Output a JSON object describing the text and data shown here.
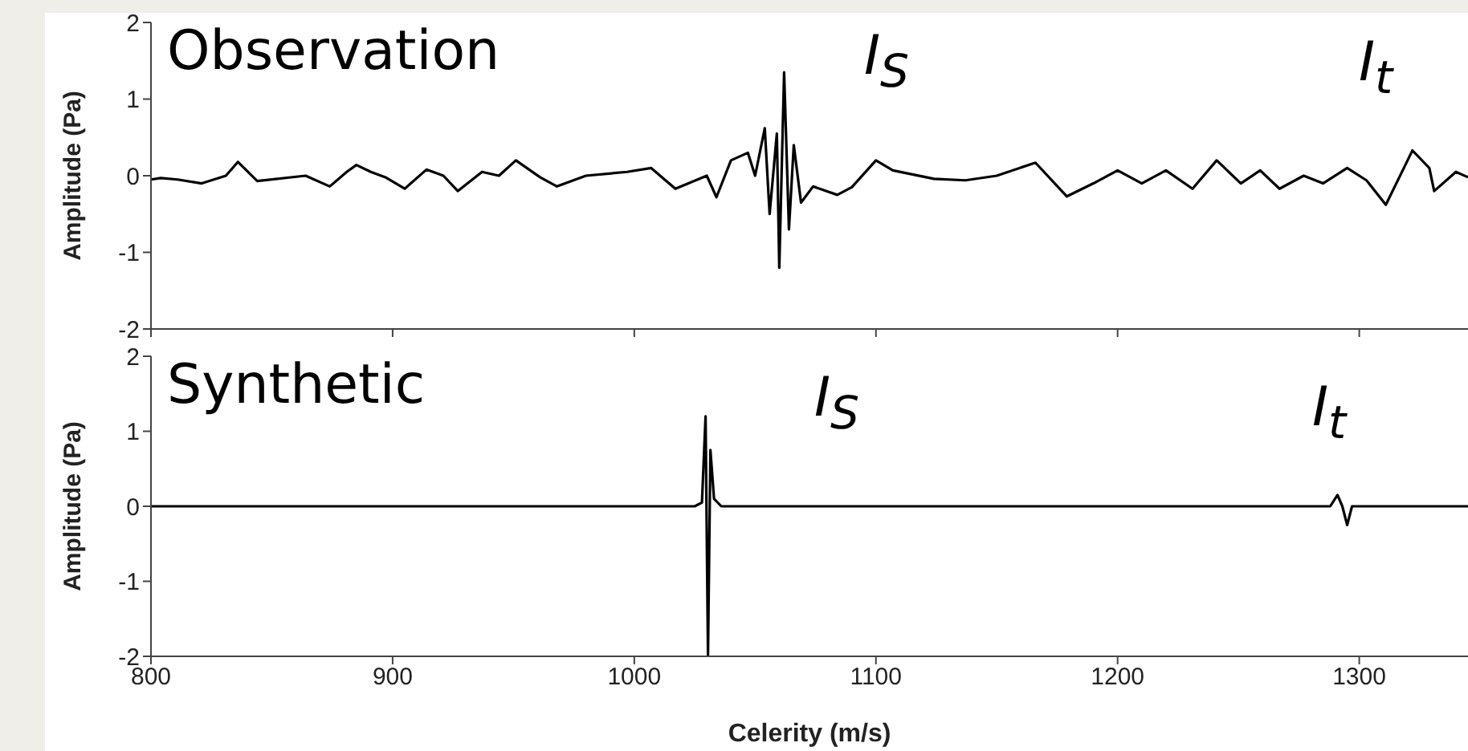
{
  "chart_data": [
    {
      "type": "line",
      "title": "Observation",
      "ylabel": "Amplitude (Pa)",
      "xlim": [
        800,
        1345
      ],
      "xticks": [
        800,
        900,
        1000,
        1100,
        1200,
        1300
      ],
      "ylim": [
        -2,
        2
      ],
      "yticks": [
        -2,
        -1,
        0,
        1,
        2
      ],
      "tick_labels": "y",
      "grid": false,
      "legend": false,
      "marker": "none",
      "line_style": "solid",
      "series": [
        {
          "color": "#000000",
          "x": [
            800,
            804,
            811,
            821,
            831,
            836,
            844,
            864,
            874,
            881,
            885,
            891,
            897,
            905,
            914,
            921,
            927,
            937,
            944,
            951,
            961,
            968,
            980,
            997,
            1007,
            1017,
            1030,
            1034,
            1040,
            1047,
            1050,
            1054,
            1056,
            1059,
            1060,
            1062,
            1064,
            1066,
            1069,
            1074,
            1084,
            1090,
            1100,
            1107,
            1124,
            1137,
            1150,
            1166,
            1179,
            1190,
            1200,
            1210,
            1220,
            1231,
            1241,
            1251,
            1259,
            1267,
            1277,
            1285,
            1295,
            1303,
            1311,
            1320,
            1322,
            1329,
            1331,
            1340,
            1345
          ],
          "values": [
            -0.05,
            -0.03,
            -0.05,
            -0.1,
            0,
            0.18,
            -0.07,
            0,
            -0.14,
            0.05,
            0.14,
            0.05,
            -0.02,
            -0.17,
            0.08,
            0,
            -0.2,
            0.05,
            0,
            0.2,
            -0.02,
            -0.14,
            0,
            0.05,
            0.1,
            -0.17,
            0,
            -0.28,
            0.2,
            0.3,
            0,
            0.62,
            -0.5,
            0.55,
            -1.2,
            1.35,
            -0.7,
            0.4,
            -0.35,
            -0.14,
            -0.25,
            -0.15,
            0.2,
            0.07,
            -0.04,
            -0.06,
            0,
            0.17,
            -0.27,
            -0.1,
            0.07,
            -0.1,
            0.07,
            -0.17,
            0.2,
            -0.1,
            0.07,
            -0.17,
            0,
            -0.1,
            0.1,
            -0.06,
            -0.38,
            0.2,
            0.33,
            0.1,
            -0.2,
            0.05,
            -0.02
          ]
        }
      ],
      "annotations": [
        "I$_{S}$",
        "I$_{t}$"
      ]
    },
    {
      "type": "line",
      "title": "Synthetic",
      "ylabel": "Amplitude (Pa)",
      "xlabel": "Celerity (m/s)",
      "xlim": [
        800,
        1345
      ],
      "xticks": [
        800,
        900,
        1000,
        1100,
        1200,
        1300
      ],
      "ylim": [
        -2,
        2
      ],
      "yticks": [
        -2,
        -1,
        0,
        1,
        2
      ],
      "grid": false,
      "legend": false,
      "marker": "none",
      "line_style": "solid",
      "series": [
        {
          "color": "#000000",
          "x": [
            800,
            1025,
            1028,
            1029.5,
            1030.5,
            1031.5,
            1033,
            1036,
            1288,
            1291,
            1293,
            1295,
            1297,
            1345
          ],
          "values": [
            0,
            0,
            0.05,
            1.2,
            -2,
            0.75,
            0.1,
            0,
            0,
            0.15,
            0,
            -0.25,
            0,
            0
          ]
        }
      ],
      "annotations": [
        "I$_{S}$",
        "I$_{t}$"
      ]
    }
  ]
}
